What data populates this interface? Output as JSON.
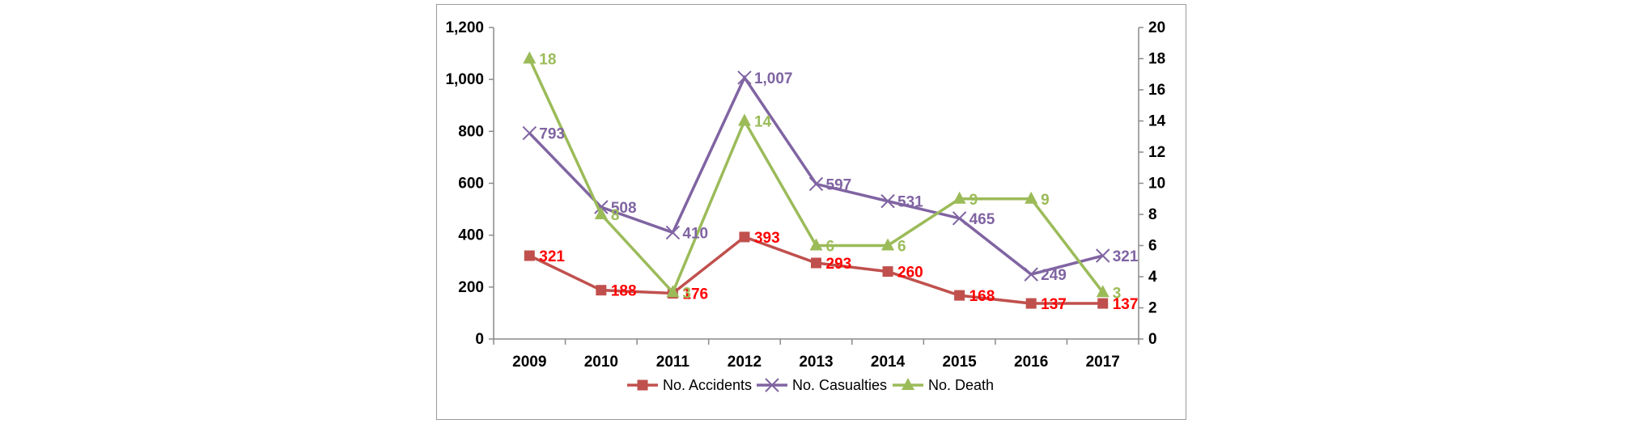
{
  "chart_data": {
    "type": "line",
    "categories": [
      "2009",
      "2010",
      "2011",
      "2012",
      "2013",
      "2014",
      "2015",
      "2016",
      "2017"
    ],
    "series": [
      {
        "name": "No. Accidents",
        "axis": "left",
        "color": "#c0504d",
        "marker": "square",
        "values": [
          321,
          188,
          176,
          393,
          293,
          260,
          168,
          137,
          137
        ]
      },
      {
        "name": "No. Casualties",
        "axis": "left",
        "color": "#8064a2",
        "marker": "x",
        "values": [
          793,
          508,
          410,
          1007,
          597,
          531,
          465,
          249,
          321
        ]
      },
      {
        "name": "No. Death",
        "axis": "right",
        "color": "#9bbb59",
        "marker": "triangle",
        "values": [
          18,
          8,
          3,
          14,
          6,
          6,
          9,
          9,
          3
        ]
      }
    ],
    "data_labels": {
      "No. Accidents": [
        "321",
        "188",
        "176",
        "393",
        "293",
        "260",
        "168",
        "137",
        "137"
      ],
      "No. Casualties": [
        "793",
        "508",
        "410",
        "1,007",
        "597",
        "531",
        "465",
        "249",
        "321"
      ],
      "No. Death": [
        "18",
        "8",
        "3",
        "14",
        "6",
        "6",
        "9",
        "9",
        "3"
      ]
    },
    "y_left": {
      "ylim": [
        0,
        1200
      ],
      "ticks": [
        "0",
        "200",
        "400",
        "600",
        "800",
        "1,000",
        "1,200"
      ]
    },
    "y_right": {
      "ylim": [
        0,
        20
      ],
      "ticks": [
        "0",
        "2",
        "4",
        "6",
        "8",
        "10",
        "12",
        "14",
        "16",
        "18",
        "20"
      ]
    },
    "grid": false,
    "legend": "bottom",
    "legend_labels": [
      "No. Accidents",
      "No. Casualties",
      "No. Death"
    ]
  }
}
